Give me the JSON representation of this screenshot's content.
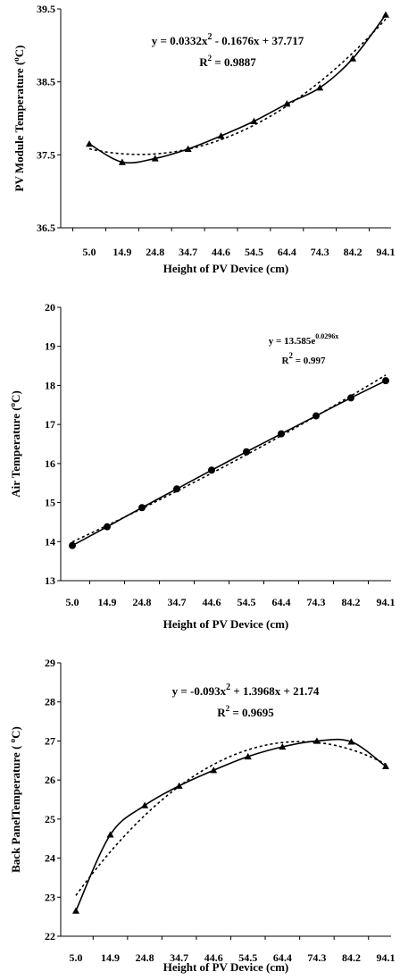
{
  "chart_data": [
    {
      "type": "line",
      "title": "",
      "xlabel": "Height of PV Device (cm)",
      "ylabel": "PV Module Temperature (oC)",
      "ylabel_main": "PV Module Temperature (",
      "ylabel_sup": "o",
      "ylabel_tail": "C)",
      "categories": [
        "5.0",
        "14.9",
        "24.8",
        "34.7",
        "44.6",
        "54.5",
        "64.4",
        "74.3",
        "84.2",
        "94.1"
      ],
      "ylim": [
        36.5,
        39.5
      ],
      "yticks": [
        "36.5",
        "37.5",
        "38.5",
        "39.5"
      ],
      "grid": false,
      "series": [
        {
          "values": [
            37.65,
            37.4,
            37.45,
            37.58,
            37.76,
            37.96,
            38.2,
            38.42,
            38.82,
            39.42
          ],
          "marker": "triangle",
          "line": "solid"
        }
      ],
      "trendline": {
        "kind": "poly2",
        "a": 0.0332,
        "b": -0.1676,
        "c": 37.717,
        "x_start": 1,
        "style": "dotted"
      },
      "equation": {
        "text1": "y = 0.0332x",
        "sup1": "2",
        "text2": " - 0.1676x + 37.717",
        "r2_text": "R",
        "r2_sup": "2",
        "r2_value": " = 0.9887"
      }
    },
    {
      "type": "line",
      "title": "",
      "xlabel": "Height of PV Device (cm)",
      "ylabel": "Air Temperature (oC)",
      "ylabel_main": "Air Temperature (",
      "ylabel_sup": "o",
      "ylabel_tail": "C)",
      "categories": [
        "5.0",
        "14.9",
        "24.8",
        "34.7",
        "44.6",
        "54.5",
        "64.4",
        "74.3",
        "84.2",
        "94.1"
      ],
      "ylim": [
        13,
        20
      ],
      "yticks": [
        "13",
        "14",
        "15",
        "16",
        "17",
        "18",
        "19",
        "20"
      ],
      "grid": false,
      "series": [
        {
          "values": [
            13.9,
            14.38,
            14.87,
            15.35,
            15.83,
            16.3,
            16.76,
            17.22,
            17.68,
            18.12
          ],
          "marker": "circle",
          "line": "solid"
        }
      ],
      "trendline": {
        "kind": "exp",
        "a": 13.585,
        "b": 0.0296,
        "x_start": 1,
        "style": "dotted"
      },
      "equation": {
        "text1": "y = 13.585e",
        "sup1": "0.0296x",
        "text2": "",
        "r2_text": "R",
        "r2_sup": "2",
        "r2_value": " = 0.997"
      }
    },
    {
      "type": "line",
      "title": "",
      "xlabel": "Height of PV Device (cm)",
      "ylabel": "Back PanelTemperature ( oC)",
      "ylabel_main": "Back PanelTemperature ( ",
      "ylabel_sup": "o",
      "ylabel_tail": "C)",
      "categories": [
        "5.0",
        "14.9",
        "24.8",
        "34.7",
        "44.6",
        "54.5",
        "64.4",
        "74.3",
        "84.2",
        "94.1"
      ],
      "ylim": [
        22,
        29
      ],
      "yticks": [
        "22",
        "23",
        "24",
        "25",
        "26",
        "27",
        "28",
        "29"
      ],
      "grid": false,
      "series": [
        {
          "values": [
            22.65,
            24.6,
            25.35,
            25.85,
            26.25,
            26.6,
            26.85,
            27.0,
            26.98,
            26.35
          ],
          "marker": "triangle",
          "line": "solid"
        }
      ],
      "trendline": {
        "kind": "poly2",
        "a": -0.093,
        "b": 1.3968,
        "c": 21.74,
        "x_start": 1,
        "style": "dotted"
      },
      "equation": {
        "text1": "y = -0.093x",
        "sup1": "2",
        "text2": " + 1.3968x + 21.74",
        "r2_text": "R",
        "r2_sup": "2",
        "r2_value": " = 0.9695"
      }
    }
  ]
}
